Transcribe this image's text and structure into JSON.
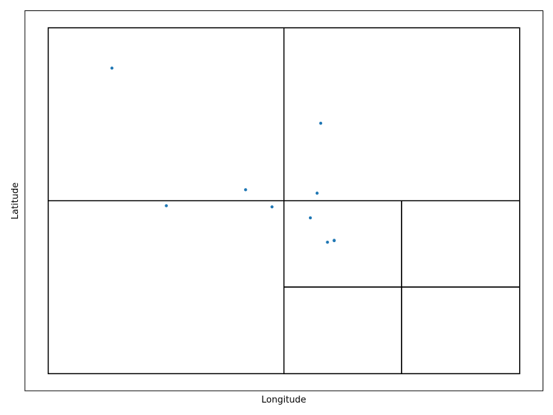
{
  "chart_data": {
    "type": "scatter",
    "title": "",
    "xlabel": "Longitude",
    "ylabel": "Latitude",
    "xlim": [
      0,
      1
    ],
    "ylim": [
      0,
      1
    ],
    "xticks": [],
    "yticks": [],
    "grid": false,
    "point_color": "#1f77b4",
    "region_boxes": [
      {
        "x0": 0.045,
        "y0": 0.045,
        "x1": 0.955,
        "y1": 0.955
      },
      {
        "x0": 0.045,
        "y0": 0.5,
        "x1": 0.5,
        "y1": 0.955
      },
      {
        "x0": 0.5,
        "y0": 0.5,
        "x1": 0.955,
        "y1": 0.955
      },
      {
        "x0": 0.045,
        "y0": 0.045,
        "x1": 0.5,
        "y1": 0.5
      },
      {
        "x0": 0.5,
        "y0": 0.045,
        "x1": 0.955,
        "y1": 0.5
      },
      {
        "x0": 0.5,
        "y0": 0.273,
        "x1": 0.727,
        "y1": 0.5
      },
      {
        "x0": 0.727,
        "y0": 0.273,
        "x1": 0.955,
        "y1": 0.5
      },
      {
        "x0": 0.5,
        "y0": 0.045,
        "x1": 0.727,
        "y1": 0.273
      },
      {
        "x0": 0.727,
        "y0": 0.045,
        "x1": 0.955,
        "y1": 0.273
      }
    ],
    "points": [
      {
        "x": 0.168,
        "y": 0.849
      },
      {
        "x": 0.571,
        "y": 0.704
      },
      {
        "x": 0.426,
        "y": 0.529
      },
      {
        "x": 0.564,
        "y": 0.52
      },
      {
        "x": 0.273,
        "y": 0.487
      },
      {
        "x": 0.477,
        "y": 0.484
      },
      {
        "x": 0.551,
        "y": 0.455
      },
      {
        "x": 0.584,
        "y": 0.391
      },
      {
        "x": 0.597,
        "y": 0.396
      },
      {
        "x": 0.597,
        "y": 0.395
      }
    ]
  }
}
